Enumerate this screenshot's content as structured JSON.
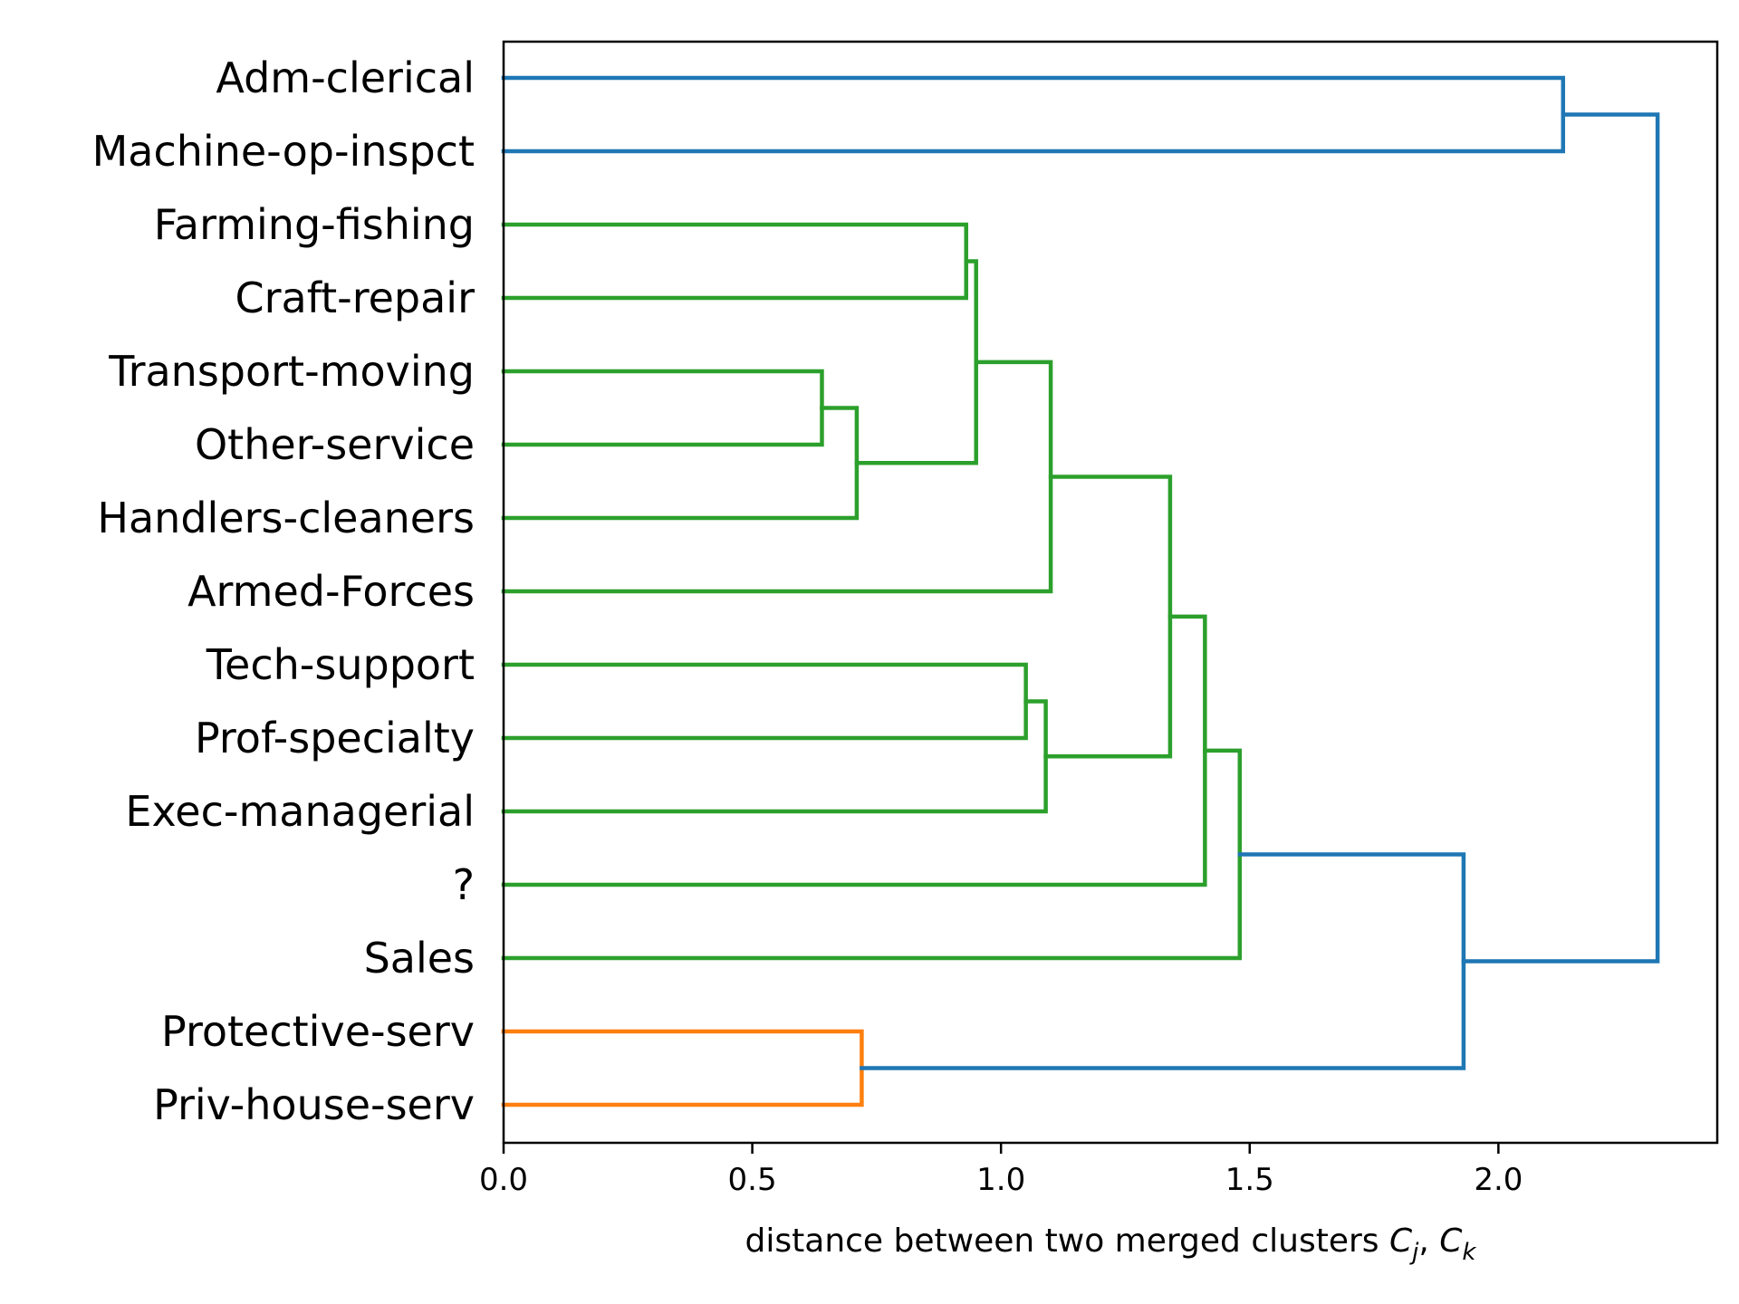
{
  "chart_data": {
    "type": "dendrogram",
    "orientation": "horizontal",
    "leaves": [
      "Adm-clerical",
      "Machine-op-inspct",
      "Farming-fishing",
      "Craft-repair",
      "Transport-moving",
      "Other-service",
      "Handlers-cleaners",
      "Armed-Forces",
      "Tech-support",
      "Prof-specialty",
      "Exec-managerial",
      "?",
      "Sales",
      "Protective-serv",
      "Priv-house-serv"
    ],
    "merges": [
      {
        "id": "m1",
        "left": 4,
        "right": 5,
        "distance": 0.64,
        "color": "#2ca02c"
      },
      {
        "id": "m2",
        "left": "m1",
        "right": 6,
        "distance": 0.71,
        "color": "#2ca02c"
      },
      {
        "id": "m3",
        "left": 13,
        "right": 14,
        "distance": 0.72,
        "color": "#ff7f0e"
      },
      {
        "id": "m4",
        "left": 2,
        "right": 3,
        "distance": 0.93,
        "color": "#2ca02c"
      },
      {
        "id": "m5",
        "left": "m4",
        "right": "m2",
        "distance": 0.95,
        "color": "#2ca02c"
      },
      {
        "id": "m6",
        "left": 8,
        "right": 9,
        "distance": 1.05,
        "color": "#2ca02c"
      },
      {
        "id": "m7",
        "left": "m6",
        "right": 10,
        "distance": 1.09,
        "color": "#2ca02c"
      },
      {
        "id": "m8",
        "left": "m5",
        "right": 7,
        "distance": 1.1,
        "color": "#2ca02c"
      },
      {
        "id": "m9",
        "left": "m8",
        "right": "m7",
        "distance": 1.34,
        "color": "#2ca02c"
      },
      {
        "id": "m10",
        "left": "m9",
        "right": 11,
        "distance": 1.41,
        "color": "#2ca02c"
      },
      {
        "id": "m11",
        "left": "m10",
        "right": 12,
        "distance": 1.48,
        "color": "#2ca02c"
      },
      {
        "id": "m12",
        "left": "m11",
        "right": "m3",
        "distance": 1.93,
        "color": "#1f77b4"
      },
      {
        "id": "m13",
        "left": 0,
        "right": 1,
        "distance": 2.13,
        "color": "#1f77b4"
      },
      {
        "id": "m14",
        "left": "m13",
        "right": "m12",
        "distance": 2.32,
        "color": "#1f77b4"
      }
    ],
    "xticks": [
      "0.0",
      "0.5",
      "1.0",
      "1.5",
      "2.0"
    ],
    "xtick_values": [
      0.0,
      0.5,
      1.0,
      1.5,
      2.0
    ],
    "xlim": [
      0.0,
      2.44
    ],
    "xlabel": {
      "text": "distance between two merged clusters ",
      "var1": "C",
      "sub1": "j",
      "sep": ", ",
      "var2": "C",
      "sub2": "k"
    },
    "grid": false,
    "colors": {
      "above_threshold": "#1f77b4",
      "cluster_green": "#2ca02c",
      "cluster_orange": "#ff7f0e",
      "axes": "#000000"
    }
  }
}
